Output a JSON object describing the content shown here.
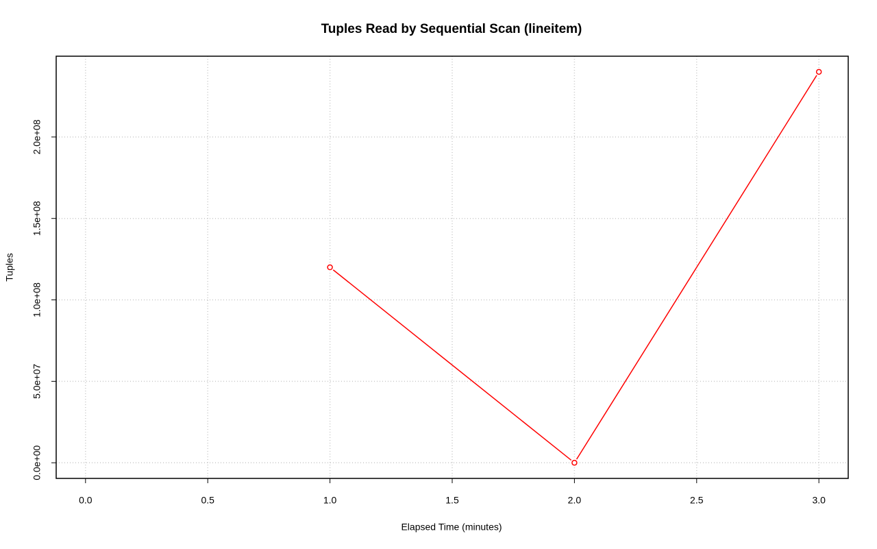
{
  "chart_data": {
    "type": "line",
    "title": "Tuples Read by Sequential Scan (lineitem)",
    "x_label": "Elapsed Time (minutes)",
    "y_label": "Tuples",
    "x": [
      1,
      2,
      3
    ],
    "values": [
      120000000,
      0,
      240000000
    ],
    "color": "#ff0000",
    "xlim": [
      -0.12,
      3.12
    ],
    "ylim": [
      -9600000,
      249600000
    ],
    "xticks": [
      {
        "value": 0,
        "label": "0.0"
      },
      0.5,
      {
        "value": 1,
        "label": "1.0"
      },
      1.5,
      {
        "value": 2,
        "label": "2.0"
      },
      2.5,
      {
        "value": 3,
        "label": "3.0"
      }
    ],
    "yticks": [
      {
        "value": 0,
        "label": "0.0e+00"
      },
      {
        "value": 50000000,
        "label": "5.0e+07"
      },
      {
        "value": 100000000,
        "label": "1.0e+08"
      },
      {
        "value": 150000000,
        "label": "1.5e+08"
      },
      {
        "value": 200000000,
        "label": "2.0e+08"
      }
    ],
    "grid": true
  }
}
